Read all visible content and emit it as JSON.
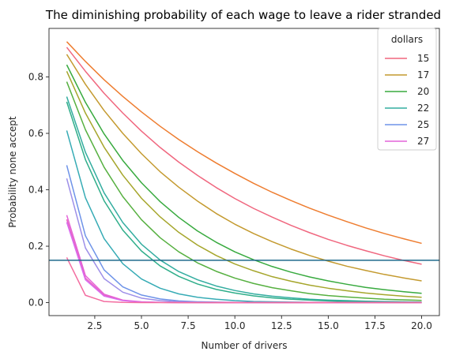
{
  "chart_data": {
    "type": "line",
    "title": "The diminishing probability of each wage to leave a rider stranded",
    "xlabel": "Number of drivers",
    "ylabel": "Probability none accept",
    "xlim": [
      0.05,
      20.95
    ],
    "ylim": [
      -0.046,
      0.972
    ],
    "xticks": [
      2.5,
      5.0,
      7.5,
      10.0,
      12.5,
      15.0,
      17.5,
      20.0
    ],
    "xtick_labels": [
      "2.5",
      "5.0",
      "7.5",
      "10.0",
      "12.5",
      "15.0",
      "17.5",
      "20.0"
    ],
    "yticks": [
      0.0,
      0.2,
      0.4,
      0.6,
      0.8
    ],
    "ytick_labels": [
      "0.0",
      "0.2",
      "0.4",
      "0.6",
      "0.8"
    ],
    "grid": false,
    "legend": {
      "title": "dollars",
      "placement": "top-right",
      "entries": [
        {
          "label": "15",
          "color": "#f0677f"
        },
        {
          "label": "17",
          "color": "#c49a2f"
        },
        {
          "label": "20",
          "color": "#38aa3f"
        },
        {
          "label": "22",
          "color": "#33ada0"
        },
        {
          "label": "25",
          "color": "#6e93e8"
        },
        {
          "label": "27",
          "color": "#e464d8"
        }
      ]
    },
    "hline": {
      "y": 0.15,
      "color": "#1f6a8c"
    },
    "x": [
      1,
      2,
      3,
      4,
      5,
      6,
      7,
      8,
      9,
      10,
      11,
      12,
      13,
      14,
      15,
      16,
      17,
      18,
      19,
      20
    ],
    "series": [
      {
        "color": "#ee7d30",
        "values": [
          0.925,
          0.855,
          0.79,
          0.731,
          0.676,
          0.625,
          0.578,
          0.535,
          0.495,
          0.458,
          0.423,
          0.391,
          0.362,
          0.335,
          0.31,
          0.287,
          0.265,
          0.245,
          0.227,
          0.21
        ]
      },
      {
        "color": "#f0677f",
        "values": [
          0.905,
          0.82,
          0.742,
          0.672,
          0.608,
          0.55,
          0.498,
          0.451,
          0.408,
          0.369,
          0.334,
          0.303,
          0.274,
          0.248,
          0.224,
          0.203,
          0.184,
          0.166,
          0.15,
          0.136
        ]
      },
      {
        "color": "#c49a2f",
        "values": [
          0.88,
          0.774,
          0.681,
          0.6,
          0.528,
          0.464,
          0.409,
          0.36,
          0.316,
          0.278,
          0.245,
          0.216,
          0.19,
          0.167,
          0.147,
          0.129,
          0.114,
          0.1,
          0.088,
          0.077
        ]
      },
      {
        "color": "#38aa3f",
        "values": [
          0.843,
          0.71,
          0.598,
          0.504,
          0.425,
          0.358,
          0.302,
          0.254,
          0.214,
          0.18,
          0.152,
          0.128,
          0.108,
          0.091,
          0.077,
          0.065,
          0.054,
          0.046,
          0.039,
          0.033
        ]
      },
      {
        "color": "#a6a62c",
        "values": [
          0.82,
          0.672,
          0.551,
          0.452,
          0.37,
          0.304,
          0.249,
          0.204,
          0.167,
          0.137,
          0.113,
          0.092,
          0.076,
          0.062,
          0.051,
          0.042,
          0.034,
          0.028,
          0.023,
          0.019
        ]
      },
      {
        "color": "#56b040",
        "values": [
          0.783,
          0.613,
          0.48,
          0.376,
          0.294,
          0.23,
          0.18,
          0.141,
          0.111,
          0.087,
          0.068,
          0.053,
          0.042,
          0.032,
          0.025,
          0.02,
          0.016,
          0.012,
          0.01,
          0.008
        ]
      },
      {
        "color": "#33ada0",
        "values": [
          0.73,
          0.533,
          0.389,
          0.284,
          0.207,
          0.151,
          0.11,
          0.081,
          0.059,
          0.043,
          0.031,
          0.023,
          0.017,
          0.012,
          0.009,
          0.007,
          0.005,
          0.004,
          0.003,
          0.002
        ]
      },
      {
        "color": "#2fae8a",
        "values": [
          0.712,
          0.507,
          0.361,
          0.257,
          0.183,
          0.13,
          0.093,
          0.066,
          0.047,
          0.034,
          0.024,
          0.017,
          0.012,
          0.009,
          0.006,
          0.004,
          0.003,
          0.002,
          0.002,
          0.001
        ]
      },
      {
        "color": "#36abb5",
        "values": [
          0.61,
          0.372,
          0.227,
          0.138,
          0.084,
          0.051,
          0.031,
          0.019,
          0.012,
          0.007,
          0.004,
          0.003,
          0.002,
          0.001,
          0.001,
          0.0,
          0.0,
          0.0,
          0.0,
          0.0
        ]
      },
      {
        "color": "#6e93e8",
        "values": [
          0.487,
          0.237,
          0.116,
          0.056,
          0.027,
          0.013,
          0.006,
          0.003,
          0.002,
          0.001,
          0.0,
          0.0,
          0.0,
          0.0,
          0.0,
          0.0,
          0.0,
          0.0,
          0.0,
          0.0
        ]
      },
      {
        "color": "#9d8fe8",
        "values": [
          0.44,
          0.194,
          0.085,
          0.037,
          0.016,
          0.007,
          0.003,
          0.001,
          0.001,
          0.0,
          0.0,
          0.0,
          0.0,
          0.0,
          0.0,
          0.0,
          0.0,
          0.0,
          0.0,
          0.0
        ]
      },
      {
        "color": "#e464d8",
        "values": [
          0.31,
          0.096,
          0.03,
          0.009,
          0.003,
          0.001,
          0.0,
          0.0,
          0.0,
          0.0,
          0.0,
          0.0,
          0.0,
          0.0,
          0.0,
          0.0,
          0.0,
          0.0,
          0.0,
          0.0
        ]
      },
      {
        "color": "#ea62c0",
        "values": [
          0.295,
          0.087,
          0.026,
          0.008,
          0.002,
          0.001,
          0.0,
          0.0,
          0.0,
          0.0,
          0.0,
          0.0,
          0.0,
          0.0,
          0.0,
          0.0,
          0.0,
          0.0,
          0.0,
          0.0
        ]
      },
      {
        "color": "#d96cf0",
        "values": [
          0.285,
          0.081,
          0.023,
          0.007,
          0.002,
          0.001,
          0.0,
          0.0,
          0.0,
          0.0,
          0.0,
          0.0,
          0.0,
          0.0,
          0.0,
          0.0,
          0.0,
          0.0,
          0.0,
          0.0
        ]
      },
      {
        "color": "#f36da0",
        "values": [
          0.16,
          0.026,
          0.004,
          0.001,
          0.0,
          0.0,
          0.0,
          0.0,
          0.0,
          0.0,
          0.0,
          0.0,
          0.0,
          0.0,
          0.0,
          0.0,
          0.0,
          0.0,
          0.0,
          0.0
        ]
      }
    ]
  }
}
